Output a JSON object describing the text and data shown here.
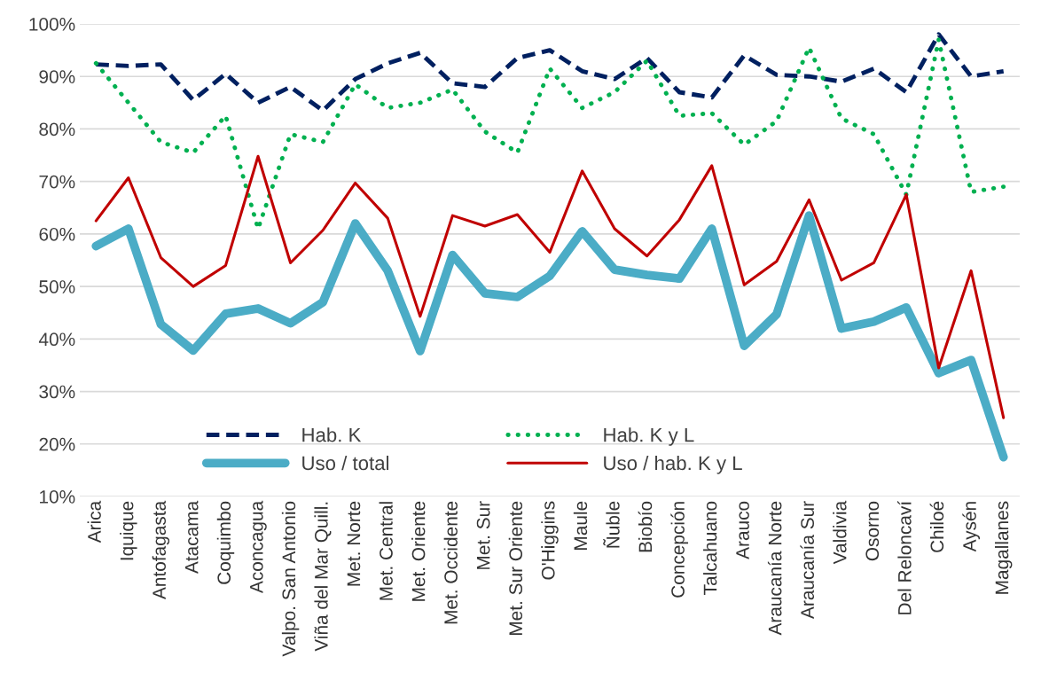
{
  "chart_data": {
    "type": "line",
    "categories": [
      "Arica",
      "Iquique",
      "Antofagasta",
      "Atacama",
      "Coquimbo",
      "Aconcagua",
      "Valpo. San Antonio",
      "Viña del Mar Quill.",
      "Met. Norte",
      "Met. Central",
      "Met. Oriente",
      "Met. Occidente",
      "Met. Sur",
      "Met. Sur Oriente",
      "O'Higgins",
      "Maule",
      "Ñuble",
      "Biobío",
      "Concepción",
      "Talcahuano",
      "Arauco",
      "Araucanía Norte",
      "Araucanía Sur",
      "Valdivia",
      "Osorno",
      "Del Reloncaví",
      "Chiloé",
      "Aysén",
      "Magallanes"
    ],
    "series": [
      {
        "name": "Hab. K",
        "color": "#002060",
        "line_style": "dashed",
        "values": [
          92.3,
          92,
          92.3,
          85.5,
          90.5,
          85,
          88,
          83.5,
          89.5,
          92.5,
          94.5,
          88.7,
          88,
          93.5,
          95,
          91,
          89.5,
          93.5,
          87,
          86,
          94,
          90.3,
          90,
          89,
          91.5,
          87,
          98,
          90,
          91
        ]
      },
      {
        "name": "Hab. K y L",
        "color": "#00b050",
        "line_style": "dotted",
        "values": [
          92.5,
          85,
          77.5,
          75.5,
          82.5,
          61,
          79,
          77.5,
          88.5,
          84,
          85,
          87.5,
          79.5,
          75.5,
          91.5,
          84,
          87,
          93,
          82.5,
          83,
          77,
          81.5,
          95.5,
          82,
          79,
          67.5,
          97,
          68,
          69
        ]
      },
      {
        "name": "Uso / total",
        "color": "#4bacc6",
        "line_style": "solid",
        "values": [
          57.7,
          61,
          42.8,
          37.8,
          44.8,
          45.8,
          43,
          47,
          62,
          53,
          37.7,
          56,
          48.7,
          48,
          52,
          60.5,
          53.2,
          52.2,
          51.5,
          61,
          38.7,
          44.7,
          63.5,
          42,
          43.3,
          46,
          33.5,
          36,
          17.5
        ]
      },
      {
        "name": "Uso / hab. K y L",
        "color": "#c00000",
        "line_style": "solid",
        "values": [
          62.5,
          70.7,
          55.5,
          50,
          54,
          74.8,
          54.5,
          60.7,
          69.7,
          63,
          44.3,
          63.5,
          61.5,
          63.7,
          56.5,
          72,
          61,
          55.8,
          62.7,
          73,
          50.3,
          54.8,
          66.5,
          51.2,
          54.5,
          67.5,
          34.5,
          53,
          25
        ]
      }
    ],
    "ylim": [
      10,
      100
    ],
    "yticks": [
      {
        "value": 10,
        "label": "10%"
      },
      {
        "value": 20,
        "label": "20%"
      },
      {
        "value": 30,
        "label": "30%"
      },
      {
        "value": 40,
        "label": "40%"
      },
      {
        "value": 50,
        "label": "50%"
      },
      {
        "value": 60,
        "label": "60%"
      },
      {
        "value": 70,
        "label": "70%"
      },
      {
        "value": 80,
        "label": "80%"
      },
      {
        "value": 90,
        "label": "90%"
      },
      {
        "value": 100,
        "label": "100%"
      }
    ],
    "grid": "y",
    "legend": "bottom",
    "marker": "none"
  }
}
